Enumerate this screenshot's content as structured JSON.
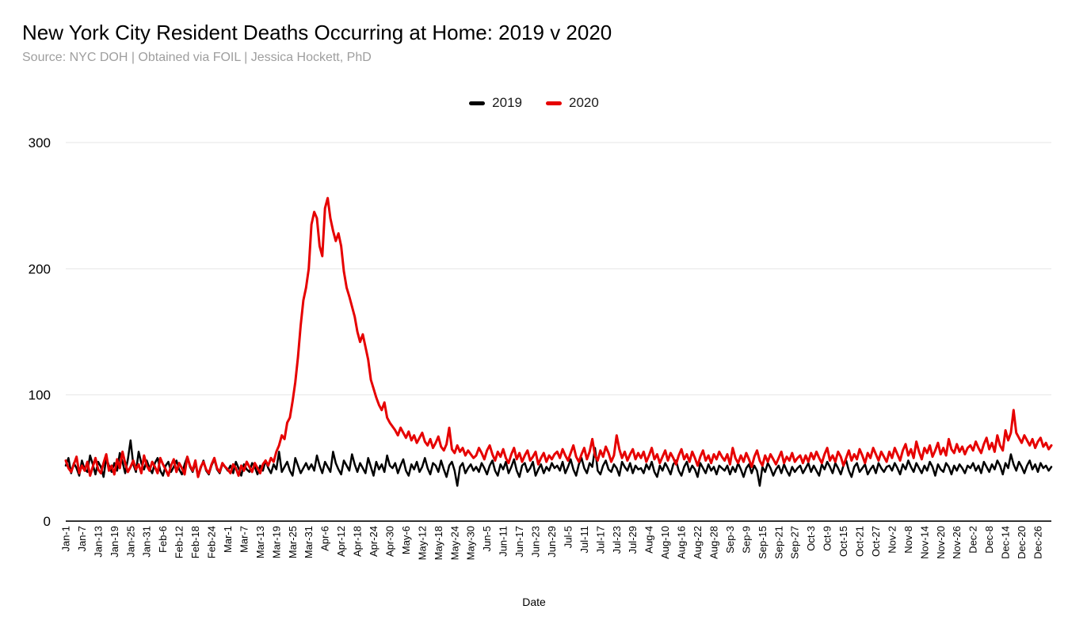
{
  "chart_data": {
    "type": "line",
    "title": "New York City Resident Deaths Occurring at Home: 2019 v 2020",
    "subtitle": "Source: NYC DOH | Obtained via FOIL | Jessica Hockett, PhD",
    "xlabel": "Date",
    "ylabel": "",
    "ylim": [
      0,
      300
    ],
    "yticks": [
      0,
      100,
      200,
      300
    ],
    "grid": "horizontal",
    "legend_position": "top-center",
    "n_points": 366,
    "tick_step_days": 6,
    "x_tick_labels": [
      "Jan-1",
      "Jan-7",
      "Jan-13",
      "Jan-19",
      "Jan-25",
      "Jan-31",
      "Feb-6",
      "Feb-12",
      "Feb-18",
      "Feb-24",
      "Mar-1",
      "Mar-7",
      "Mar-13",
      "Mar-19",
      "Mar-25",
      "Mar-31",
      "Apr-6",
      "Apr-12",
      "Apr-18",
      "Apr-24",
      "Apr-30",
      "May-6",
      "May-12",
      "May-18",
      "May-24",
      "May-30",
      "Jun-5",
      "Jun-11",
      "Jun-17",
      "Jun-23",
      "Jun-29",
      "Jul-5",
      "Jul-11",
      "Jul-17",
      "Jul-23",
      "Jul-29",
      "Aug-4",
      "Aug-10",
      "Aug-16",
      "Aug-22",
      "Aug-28",
      "Sep-3",
      "Sep-9",
      "Sep-15",
      "Sep-21",
      "Sep-27",
      "Oct-3",
      "Oct-9",
      "Oct-15",
      "Oct-21",
      "Oct-27",
      "Nov-2",
      "Nov-8",
      "Nov-14",
      "Nov-20",
      "Nov-26",
      "Dec-2",
      "Dec-8",
      "Dec-14",
      "Dec-20",
      "Dec-26"
    ],
    "colors": {
      "series_2019": "#000000",
      "series_2020": "#e60000",
      "gridline": "#e6e6e6",
      "axis_line": "#333333",
      "subtitle_text": "#9e9e9e"
    },
    "series": [
      {
        "name": "2019",
        "color": "#000000",
        "values": [
          44,
          50,
          38,
          46,
          42,
          36,
          48,
          41,
          39,
          52,
          45,
          37,
          47,
          43,
          35,
          50,
          44,
          39,
          46,
          40,
          54,
          47,
          38,
          49,
          64,
          45,
          39,
          55,
          46,
          41,
          48,
          42,
          38,
          46,
          50,
          40,
          36,
          44,
          47,
          39,
          43,
          48,
          41,
          37,
          45,
          51,
          43,
          39,
          46,
          35,
          42,
          48,
          40,
          37,
          44,
          49,
          41,
          38,
          45,
          43,
          40,
          44,
          38,
          47,
          42,
          36,
          45,
          41,
          39,
          46,
          43,
          37,
          44,
          40,
          48,
          42,
          38,
          45,
          41,
          55,
          39,
          43,
          47,
          40,
          36,
          50,
          44,
          38,
          42,
          46,
          41,
          45,
          40,
          52,
          44,
          38,
          47,
          43,
          39,
          55,
          46,
          41,
          37,
          48,
          44,
          40,
          53,
          45,
          39,
          46,
          42,
          38,
          50,
          43,
          36,
          47,
          41,
          45,
          39,
          52,
          44,
          42,
          46,
          38,
          44,
          49,
          40,
          36,
          45,
          41,
          47,
          39,
          43,
          50,
          42,
          37,
          46,
          44,
          39,
          48,
          41,
          35,
          44,
          47,
          40,
          28,
          43,
          46,
          38,
          42,
          45,
          40,
          43,
          39,
          46,
          42,
          37,
          44,
          48,
          40,
          36,
          45,
          41,
          47,
          38,
          43,
          49,
          40,
          35,
          44,
          46,
          39,
          42,
          47,
          36,
          41,
          45,
          38,
          43,
          40,
          46,
          42,
          44,
          40,
          47,
          38,
          43,
          49,
          41,
          36,
          45,
          50,
          42,
          38,
          46,
          43,
          58,
          40,
          37,
          44,
          48,
          41,
          39,
          45,
          42,
          36,
          47,
          43,
          40,
          46,
          38,
          44,
          41,
          42,
          38,
          45,
          41,
          47,
          39,
          35,
          44,
          40,
          46,
          42,
          37,
          45,
          48,
          40,
          36,
          43,
          47,
          39,
          44,
          41,
          35,
          46,
          42,
          38,
          45,
          40,
          43,
          37,
          44,
          42,
          40,
          44,
          37,
          43,
          39,
          46,
          41,
          35,
          42,
          45,
          38,
          44,
          40,
          28,
          43,
          39,
          46,
          42,
          36,
          41,
          44,
          38,
          45,
          40,
          36,
          43,
          39,
          42,
          44,
          38,
          42,
          46,
          39,
          44,
          40,
          36,
          45,
          41,
          47,
          43,
          38,
          46,
          42,
          37,
          44,
          48,
          40,
          35,
          43,
          46,
          39,
          42,
          45,
          37,
          41,
          44,
          38,
          46,
          42,
          39,
          43,
          44,
          40,
          46,
          42,
          37,
          45,
          41,
          48,
          43,
          39,
          46,
          42,
          38,
          44,
          40,
          47,
          43,
          36,
          45,
          41,
          39,
          46,
          43,
          37,
          44,
          40,
          45,
          42,
          38,
          44,
          42,
          46,
          40,
          44,
          38,
          47,
          43,
          39,
          45,
          41,
          48,
          44,
          37,
          46,
          42,
          53,
          45,
          40,
          47,
          43,
          38,
          44,
          48,
          41,
          45,
          39,
          46,
          42,
          44,
          40,
          43
        ]
      },
      {
        "name": "2020",
        "color": "#e60000",
        "values": [
          48,
          42,
          39,
          45,
          51,
          38,
          44,
          40,
          47,
          36,
          43,
          50,
          41,
          38,
          46,
          53,
          40,
          44,
          37,
          49,
          42,
          55,
          46,
          39,
          43,
          48,
          41,
          45,
          38,
          52,
          44,
          40,
          47,
          43,
          38,
          50,
          45,
          41,
          36,
          44,
          49,
          39,
          46,
          42,
          37,
          51,
          44,
          40,
          48,
          35,
          43,
          47,
          41,
          38,
          45,
          50,
          42,
          39,
          46,
          43,
          41,
          38,
          45,
          42,
          36,
          44,
          40,
          47,
          43,
          39,
          46,
          42,
          38,
          45,
          48,
          44,
          50,
          47,
          55,
          60,
          68,
          65,
          78,
          82,
          95,
          110,
          130,
          155,
          175,
          185,
          200,
          235,
          245,
          240,
          218,
          210,
          248,
          256,
          240,
          230,
          222,
          228,
          218,
          198,
          185,
          178,
          170,
          162,
          150,
          142,
          148,
          138,
          128,
          112,
          105,
          98,
          92,
          88,
          94,
          82,
          78,
          75,
          72,
          68,
          74,
          70,
          66,
          71,
          64,
          68,
          62,
          66,
          70,
          63,
          60,
          65,
          58,
          62,
          67,
          59,
          56,
          61,
          74,
          57,
          54,
          60,
          55,
          58,
          52,
          56,
          53,
          50,
          52,
          58,
          54,
          49,
          56,
          60,
          53,
          48,
          55,
          51,
          57,
          50,
          46,
          53,
          58,
          49,
          54,
          47,
          52,
          56,
          48,
          51,
          55,
          45,
          50,
          54,
          47,
          52,
          49,
          53,
          55,
          50,
          57,
          52,
          48,
          54,
          60,
          51,
          47,
          53,
          58,
          49,
          55,
          65,
          52,
          48,
          56,
          51,
          59,
          54,
          47,
          52,
          68,
          57,
          50,
          55,
          48,
          53,
          57,
          49,
          54,
          50,
          55,
          47,
          52,
          58,
          49,
          53,
          46,
          51,
          56,
          48,
          54,
          50,
          45,
          52,
          57,
          49,
          53,
          47,
          55,
          50,
          44,
          51,
          56,
          48,
          52,
          46,
          53,
          49,
          55,
          51,
          48,
          53,
          45,
          58,
          50,
          46,
          52,
          47,
          54,
          49,
          43,
          51,
          56,
          48,
          44,
          52,
          47,
          53,
          49,
          45,
          50,
          55,
          46,
          51,
          48,
          54,
          47,
          50,
          52,
          46,
          52,
          47,
          54,
          49,
          55,
          50,
          46,
          53,
          58,
          48,
          52,
          47,
          55,
          51,
          44,
          50,
          56,
          48,
          53,
          49,
          57,
          52,
          46,
          54,
          50,
          58,
          53,
          48,
          55,
          51,
          47,
          55,
          50,
          58,
          53,
          48,
          56,
          61,
          52,
          57,
          50,
          63,
          55,
          49,
          58,
          54,
          60,
          51,
          56,
          62,
          53,
          58,
          52,
          65,
          57,
          54,
          61,
          55,
          59,
          53,
          58,
          60,
          56,
          63,
          58,
          54,
          61,
          66,
          57,
          62,
          55,
          68,
          60,
          56,
          72,
          64,
          70,
          88,
          70,
          66,
          62,
          68,
          64,
          60,
          65,
          58,
          63,
          66,
          59,
          62,
          57,
          60
        ]
      }
    ]
  }
}
